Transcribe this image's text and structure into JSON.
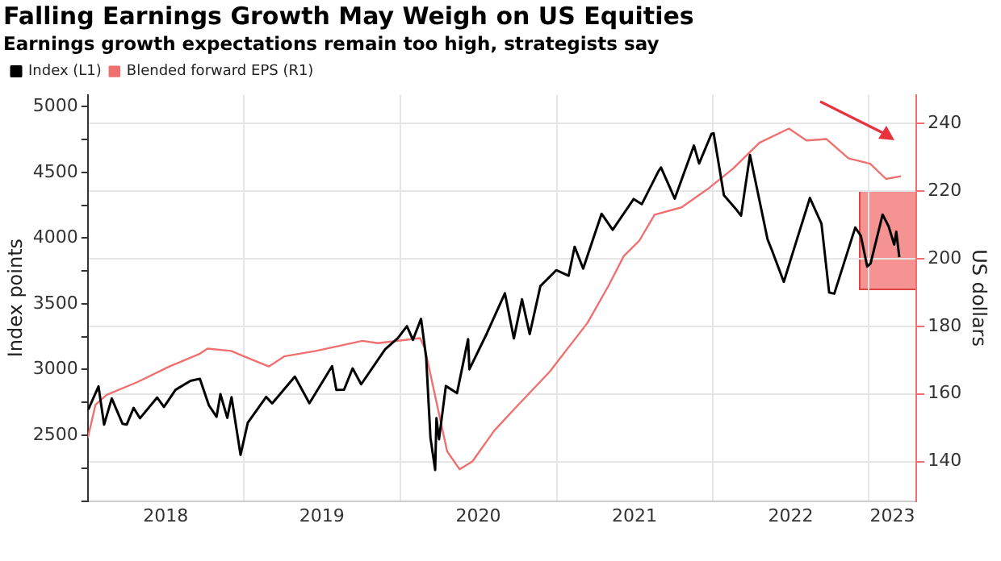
{
  "chart_data": {
    "type": "line",
    "title": "Falling Earnings Growth May Weigh on US Equities",
    "subtitle": "Earnings growth expectations remain too high, strategists say",
    "ylabel": "Index points",
    "y2label": "US dollars",
    "xlim": [
      "2018-01-01",
      "2023-04-22"
    ],
    "xticks": [
      {
        "value": "2018-07-02",
        "label": "2018"
      },
      {
        "value": "2019-01-01",
        "label": null
      },
      {
        "value": "2019-07-02",
        "label": "2019"
      },
      {
        "value": "2020-01-01",
        "label": null
      },
      {
        "value": "2020-07-02",
        "label": "2020"
      },
      {
        "value": "2021-01-01",
        "label": null
      },
      {
        "value": "2021-07-02",
        "label": "2021"
      },
      {
        "value": "2022-01-01",
        "label": null
      },
      {
        "value": "2022-07-02",
        "label": "2022"
      },
      {
        "value": "2023-01-01",
        "label": null
      },
      {
        "value": "2023-02-25",
        "label": "2023"
      }
    ],
    "ylim": [
      2000,
      5090
    ],
    "yticks": [
      {
        "value": 2000,
        "label": null
      },
      {
        "value": 2250,
        "label": null
      },
      2500,
      {
        "value": 2750,
        "label": null
      },
      3000,
      {
        "value": 3250,
        "label": null
      },
      3500,
      {
        "value": 3750,
        "label": null
      },
      4000,
      {
        "value": 4250,
        "label": null
      },
      4500,
      {
        "value": 4750,
        "label": null
      },
      5000
    ],
    "y2lim": [
      128.3,
      248.5
    ],
    "y2ticks": [
      140,
      160,
      180,
      200,
      220,
      240
    ],
    "grid": true,
    "legend": "top left",
    "series": [
      {
        "name": "Index (L1)",
        "color": "#000000",
        "x": [
          "2018-01-02",
          "2018-01-26",
          "2018-02-08",
          "2018-02-26",
          "2018-03-23",
          "2018-04-02",
          "2018-04-18",
          "2018-05-03",
          "2018-06-12",
          "2018-06-28",
          "2018-07-25",
          "2018-08-29",
          "2018-09-20",
          "2018-10-11",
          "2018-10-29",
          "2018-11-07",
          "2018-11-23",
          "2018-12-03",
          "2018-12-24",
          "2019-01-10",
          "2019-02-22",
          "2019-03-08",
          "2019-04-30",
          "2019-06-03",
          "2019-07-26",
          "2019-08-05",
          "2019-08-23",
          "2019-09-12",
          "2019-10-02",
          "2019-11-27",
          "2019-12-27",
          "2020-01-17",
          "2020-01-31",
          "2020-02-19",
          "2020-03-02",
          "2020-03-12",
          "2020-03-23",
          "2020-03-26",
          "2020-04-01",
          "2020-04-17",
          "2020-05-13",
          "2020-06-08",
          "2020-06-11",
          "2020-07-22",
          "2020-09-02",
          "2020-09-23",
          "2020-10-12",
          "2020-10-30",
          "2020-11-24",
          "2020-12-31",
          "2021-01-29",
          "2021-02-12",
          "2021-03-04",
          "2021-04-16",
          "2021-05-12",
          "2021-06-30",
          "2021-07-19",
          "2021-08-27",
          "2021-09-02",
          "2021-10-04",
          "2021-11-18",
          "2021-11-30",
          "2021-12-29",
          "2022-01-03",
          "2022-01-27",
          "2022-02-23",
          "2022-03-08",
          "2022-03-29",
          "2022-05-09",
          "2022-05-20",
          "2022-06-16",
          "2022-07-08",
          "2022-08-16",
          "2022-09-12",
          "2022-09-30",
          "2022-10-12",
          "2022-11-30",
          "2022-12-13",
          "2022-12-28",
          "2023-01-05",
          "2023-02-02",
          "2023-02-16",
          "2023-03-01",
          "2023-03-06",
          "2023-03-13"
        ],
        "values": [
          2695,
          2872,
          2581,
          2780,
          2588,
          2582,
          2708,
          2630,
          2787,
          2716,
          2846,
          2914,
          2930,
          2728,
          2641,
          2813,
          2633,
          2790,
          2351,
          2596,
          2792,
          2743,
          2946,
          2744,
          3026,
          2845,
          2847,
          3009,
          2888,
          3154,
          3240,
          3330,
          3226,
          3386,
          3090,
          2481,
          2237,
          2630,
          2470,
          2875,
          2820,
          3232,
          3002,
          3276,
          3580,
          3237,
          3534,
          3270,
          3635,
          3756,
          3714,
          3934,
          3768,
          4185,
          4063,
          4297,
          4258,
          4509,
          4537,
          4300,
          4704,
          4567,
          4793,
          4797,
          4326,
          4225,
          4170,
          4632,
          3991,
          3901,
          3667,
          3899,
          4305,
          4110,
          3586,
          3577,
          4080,
          4019,
          3783,
          3808,
          4179,
          4090,
          3951,
          4048,
          3855
        ]
      },
      {
        "name": "Blended forward EPS (R1)",
        "color": "#f07070",
        "axis": "y2",
        "x": [
          "2018-01-01",
          "2018-01-19",
          "2018-02-14",
          "2018-04-27",
          "2018-07-09",
          "2018-09-20",
          "2018-10-08",
          "2018-12-02",
          "2019-01-15",
          "2019-02-28",
          "2019-04-05",
          "2019-06-18",
          "2019-10-05",
          "2019-11-10",
          "2020-02-17",
          "2020-02-28",
          "2020-03-25",
          "2020-04-20",
          "2020-05-19",
          "2020-06-18",
          "2020-08-08",
          "2020-09-24",
          "2020-12-16",
          "2021-03-14",
          "2021-05-01",
          "2021-06-07",
          "2021-07-13",
          "2021-08-18",
          "2021-10-20",
          "2021-12-20",
          "2022-02-17",
          "2022-04-20",
          "2022-06-28",
          "2022-08-08",
          "2022-09-24",
          "2022-11-14",
          "2023-01-04",
          "2023-02-10",
          "2023-03-17"
        ],
        "values": [
          147,
          156.8,
          159.7,
          163.5,
          168,
          171.9,
          173.4,
          172.7,
          170.4,
          168.1,
          171.1,
          172.7,
          175.7,
          175,
          176.5,
          173.4,
          158.2,
          143,
          137.7,
          140,
          149.1,
          155.5,
          166.6,
          181,
          191.7,
          200.8,
          205.3,
          213,
          215.2,
          220.6,
          226.6,
          234.3,
          238.5,
          235,
          235.4,
          229.7,
          228.1,
          223.6,
          224.4
        ]
      }
    ]
  }
}
